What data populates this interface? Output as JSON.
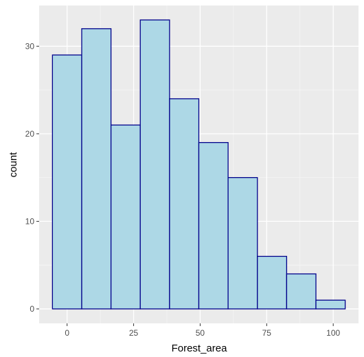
{
  "chart_data": {
    "type": "bar",
    "title": "",
    "xlabel": "Forest_area",
    "ylabel": "count",
    "bins": [
      {
        "x0": -5.5,
        "x1": 5.5,
        "count": 29
      },
      {
        "x0": 5.5,
        "x1": 16.5,
        "count": 32
      },
      {
        "x0": 16.5,
        "x1": 27.5,
        "count": 21
      },
      {
        "x0": 27.5,
        "x1": 38.5,
        "count": 33
      },
      {
        "x0": 38.5,
        "x1": 49.5,
        "count": 24
      },
      {
        "x0": 49.5,
        "x1": 60.5,
        "count": 19
      },
      {
        "x0": 60.5,
        "x1": 71.5,
        "count": 15
      },
      {
        "x0": 71.5,
        "x1": 82.5,
        "count": 6
      },
      {
        "x0": 82.5,
        "x1": 93.5,
        "count": 4
      },
      {
        "x0": 93.5,
        "x1": 104.5,
        "count": 1
      }
    ],
    "xlim": [
      -10.5,
      109.5
    ],
    "ylim": [
      -1.65,
      34.65
    ],
    "x_ticks": [
      0,
      25,
      50,
      75,
      100
    ],
    "y_ticks": [
      0,
      10,
      20,
      30
    ],
    "grid": true,
    "colors": {
      "bar_fill": "#add8e6",
      "bar_stroke": "#00008b",
      "panel_background": "#ebebeb",
      "grid_major": "#ffffff",
      "grid_minor": "#f5f5f5"
    }
  }
}
